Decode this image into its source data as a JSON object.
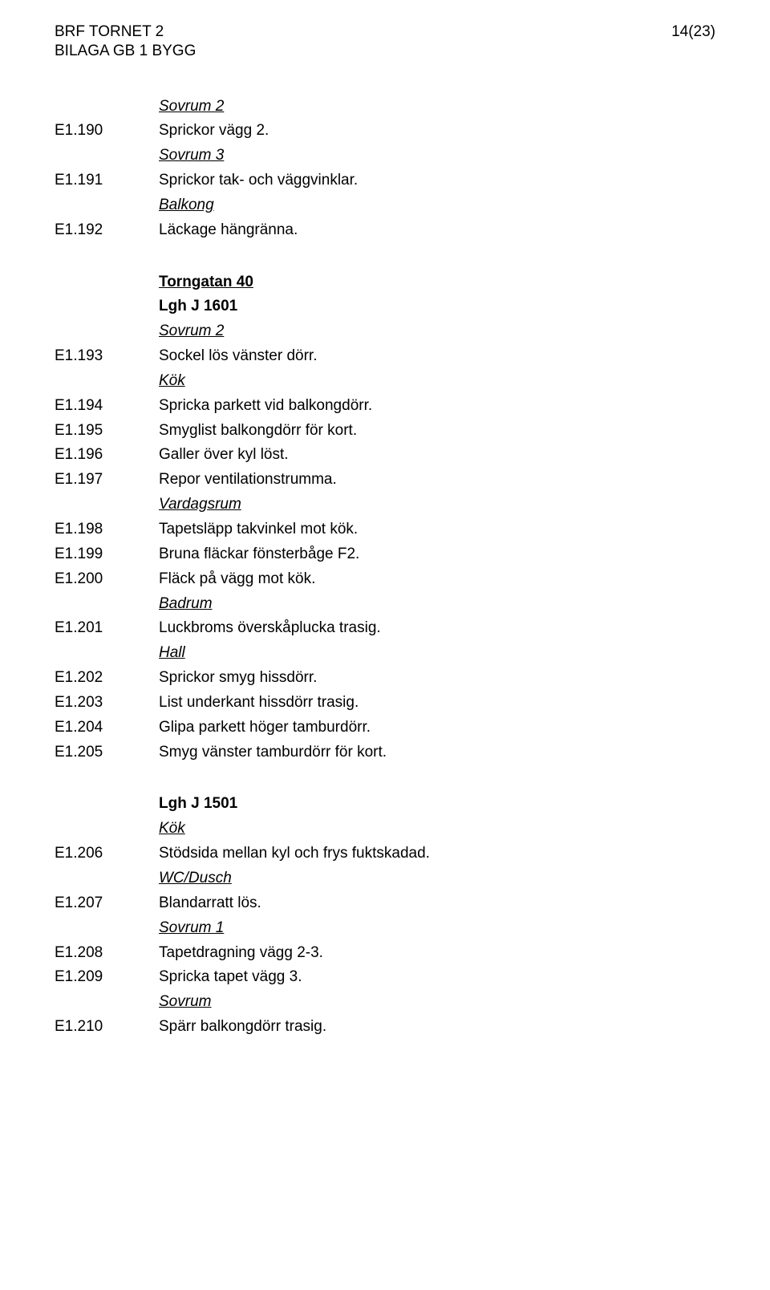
{
  "header": {
    "left1": "BRF TORNET 2",
    "left2": "BILAGA GB 1 BYGG",
    "right": "14(23)"
  },
  "content": [
    {
      "type": "heading",
      "text": "Sovrum 2"
    },
    {
      "type": "row",
      "code": "E1.190",
      "desc": "Sprickor vägg 2."
    },
    {
      "type": "heading",
      "text": "Sovrum 3"
    },
    {
      "type": "row",
      "code": "E1.191",
      "desc": "Sprickor tak- och väggvinklar."
    },
    {
      "type": "heading",
      "text": "Balkong"
    },
    {
      "type": "row",
      "code": "E1.192",
      "desc": "Läckage hängränna."
    },
    {
      "type": "gap"
    },
    {
      "type": "address",
      "text": "Torngatan 40"
    },
    {
      "type": "lgh",
      "text": "Lgh J 1601"
    },
    {
      "type": "heading",
      "text": "Sovrum 2"
    },
    {
      "type": "row",
      "code": "E1.193",
      "desc": "Sockel lös vänster dörr."
    },
    {
      "type": "heading",
      "text": "Kök"
    },
    {
      "type": "row",
      "code": "E1.194",
      "desc": "Spricka parkett vid balkongdörr."
    },
    {
      "type": "row",
      "code": "E1.195",
      "desc": "Smyglist balkongdörr för kort."
    },
    {
      "type": "row",
      "code": "E1.196",
      "desc": "Galler över kyl löst."
    },
    {
      "type": "row",
      "code": "E1.197",
      "desc": "Repor ventilationstrumma."
    },
    {
      "type": "heading",
      "text": "Vardagsrum"
    },
    {
      "type": "row",
      "code": "E1.198",
      "desc": "Tapetsläpp takvinkel mot kök."
    },
    {
      "type": "row",
      "code": "E1.199",
      "desc": "Bruna fläckar fönsterbåge F2."
    },
    {
      "type": "row",
      "code": "E1.200",
      "desc": "Fläck på vägg mot kök."
    },
    {
      "type": "heading",
      "text": "Badrum"
    },
    {
      "type": "row",
      "code": "E1.201",
      "desc": "Luckbroms överskåplucka trasig."
    },
    {
      "type": "heading",
      "text": "Hall"
    },
    {
      "type": "row",
      "code": "E1.202",
      "desc": "Sprickor smyg hissdörr."
    },
    {
      "type": "row",
      "code": "E1.203",
      "desc": "List underkant hissdörr trasig."
    },
    {
      "type": "row",
      "code": "E1.204",
      "desc": "Glipa parkett höger tamburdörr."
    },
    {
      "type": "row",
      "code": "E1.205",
      "desc": "Smyg vänster tamburdörr för kort."
    },
    {
      "type": "gap"
    },
    {
      "type": "lgh",
      "text": "Lgh J 1501"
    },
    {
      "type": "heading",
      "text": "Kök"
    },
    {
      "type": "row",
      "code": "E1.206",
      "desc": "Stödsida mellan kyl och frys fuktskadad."
    },
    {
      "type": "heading",
      "text": "WC/Dusch"
    },
    {
      "type": "row",
      "code": "E1.207",
      "desc": "Blandarratt lös."
    },
    {
      "type": "heading",
      "text": "Sovrum 1"
    },
    {
      "type": "row",
      "code": "E1.208",
      "desc": "Tapetdragning vägg 2-3."
    },
    {
      "type": "row",
      "code": "E1.209",
      "desc": "Spricka tapet vägg 3."
    },
    {
      "type": "heading",
      "text": "Sovrum"
    },
    {
      "type": "row",
      "code": "E1.210",
      "desc": "Spärr balkongdörr trasig."
    }
  ]
}
